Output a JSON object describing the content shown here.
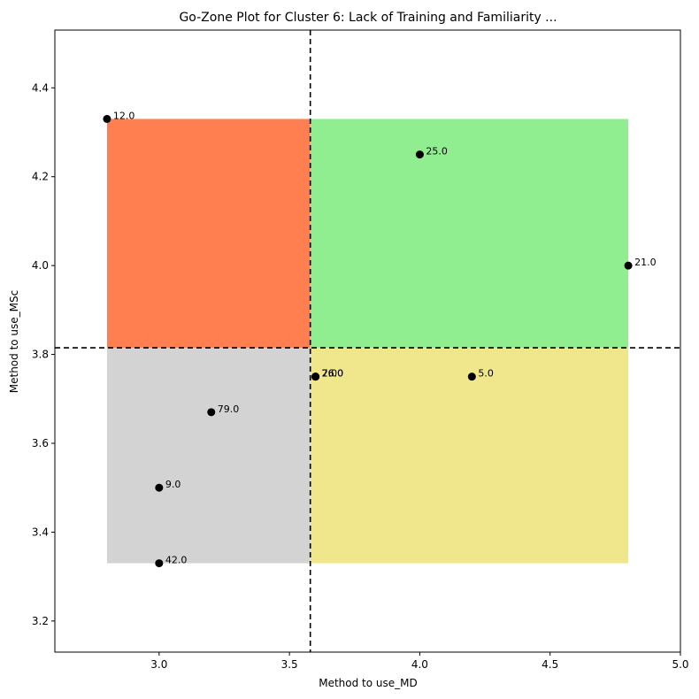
{
  "chart_data": {
    "type": "scatter",
    "title": "Go-Zone Plot for Cluster 6: Lack of Training and Familiarity ...",
    "xlabel": "Method to use_MD",
    "ylabel": "Method to use_MSc",
    "xlim": [
      2.6,
      5.0
    ],
    "ylim": [
      3.13,
      4.53
    ],
    "xticks": [
      3.0,
      3.5,
      4.0,
      4.5,
      5.0
    ],
    "xtick_labels": [
      "3.0",
      "3.5",
      "4.0",
      "4.5",
      "5.0"
    ],
    "yticks": [
      3.2,
      3.4,
      3.6,
      3.8,
      4.0,
      4.2,
      4.4
    ],
    "ytick_labels": [
      "3.2",
      "3.4",
      "3.6",
      "3.8",
      "4.0",
      "4.2",
      "4.4"
    ],
    "grid": false,
    "mean_x": 3.58,
    "mean_y": 3.815,
    "zone_extent": {
      "x": [
        2.8,
        4.8
      ],
      "y": [
        3.33,
        4.33
      ]
    },
    "zone_colors": {
      "top_left": "#ff7f50",
      "top_right": "#90ee90",
      "bottom_left": "#d3d3d3",
      "bottom_right": "#f0e68c"
    },
    "marker_color": "#000000",
    "points": [
      {
        "x": 2.8,
        "y": 4.33,
        "label": "12.0"
      },
      {
        "x": 4.0,
        "y": 4.25,
        "label": "25.0"
      },
      {
        "x": 4.8,
        "y": 4.0,
        "label": "21.0"
      },
      {
        "x": 3.6,
        "y": 3.75,
        "label": "76.0"
      },
      {
        "x": 3.6,
        "y": 3.75,
        "label": "26.0"
      },
      {
        "x": 3.6,
        "y": 3.75,
        "label": "2.0"
      },
      {
        "x": 4.2,
        "y": 3.75,
        "label": "5.0"
      },
      {
        "x": 3.2,
        "y": 3.67,
        "label": "79.0"
      },
      {
        "x": 3.0,
        "y": 3.5,
        "label": "9.0"
      },
      {
        "x": 3.0,
        "y": 3.33,
        "label": "42.0"
      }
    ]
  }
}
